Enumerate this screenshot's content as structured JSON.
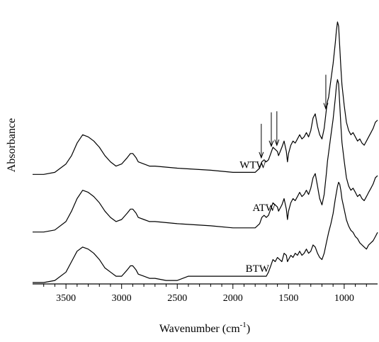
{
  "chart_data": {
    "type": "line",
    "title": "",
    "xlabel": "Wavenumber (cm-1)",
    "xlabel_main": "Wavenumber (cm",
    "xlabel_sup": "-1",
    "xlabel_close": ")",
    "ylabel": "Absorbance",
    "x_reversed": true,
    "xlim": [
      3800,
      700
    ],
    "ylim": [
      0,
      1
    ],
    "x_ticks": [
      3500,
      3000,
      2500,
      2000,
      1500,
      1000
    ],
    "x_tick_labels": [
      "3500",
      "3000",
      "2500",
      "2000",
      "1500",
      "1000"
    ],
    "y_ticks_shown": false,
    "grid": false,
    "legend": "none",
    "series": [
      {
        "name": "WTW",
        "label_x": 1820,
        "x": [
          3800,
          3700,
          3600,
          3500,
          3450,
          3400,
          3350,
          3300,
          3250,
          3200,
          3150,
          3100,
          3050,
          3000,
          2950,
          2920,
          2900,
          2870,
          2850,
          2800,
          2750,
          2700,
          2500,
          2200,
          2000,
          1800,
          1760,
          1740,
          1720,
          1700,
          1680,
          1660,
          1640,
          1620,
          1600,
          1590,
          1560,
          1540,
          1520,
          1510,
          1500,
          1480,
          1460,
          1440,
          1420,
          1400,
          1380,
          1360,
          1340,
          1320,
          1300,
          1280,
          1260,
          1240,
          1230,
          1220,
          1200,
          1180,
          1160,
          1150,
          1140,
          1120,
          1100,
          1080,
          1070,
          1060,
          1050,
          1040,
          1030,
          1020,
          1000,
          980,
          960,
          940,
          920,
          900,
          880,
          860,
          840,
          820,
          800,
          780,
          760,
          740,
          720,
          700
        ],
        "y": [
          0.27,
          0.27,
          0.28,
          0.32,
          0.36,
          0.42,
          0.46,
          0.45,
          0.43,
          0.4,
          0.36,
          0.33,
          0.31,
          0.32,
          0.35,
          0.37,
          0.37,
          0.35,
          0.33,
          0.32,
          0.31,
          0.31,
          0.3,
          0.29,
          0.28,
          0.28,
          0.3,
          0.33,
          0.34,
          0.33,
          0.34,
          0.37,
          0.4,
          0.39,
          0.38,
          0.36,
          0.4,
          0.43,
          0.38,
          0.33,
          0.37,
          0.41,
          0.43,
          0.42,
          0.44,
          0.46,
          0.44,
          0.45,
          0.47,
          0.45,
          0.48,
          0.54,
          0.56,
          0.5,
          0.48,
          0.46,
          0.44,
          0.49,
          0.58,
          0.62,
          0.64,
          0.72,
          0.8,
          0.9,
          0.96,
          1.0,
          0.98,
          0.88,
          0.78,
          0.7,
          0.6,
          0.52,
          0.48,
          0.46,
          0.47,
          0.45,
          0.43,
          0.44,
          0.42,
          0.41,
          0.43,
          0.45,
          0.47,
          0.49,
          0.52,
          0.53
        ]
      },
      {
        "name": "ATW",
        "label_x": 1720,
        "x": [
          3800,
          3700,
          3600,
          3500,
          3450,
          3400,
          3350,
          3300,
          3250,
          3200,
          3150,
          3100,
          3050,
          3000,
          2950,
          2920,
          2900,
          2870,
          2850,
          2800,
          2750,
          2700,
          2500,
          2200,
          2000,
          1800,
          1760,
          1740,
          1720,
          1700,
          1680,
          1660,
          1640,
          1620,
          1600,
          1590,
          1560,
          1540,
          1520,
          1510,
          1500,
          1480,
          1460,
          1440,
          1420,
          1400,
          1380,
          1360,
          1340,
          1320,
          1300,
          1280,
          1260,
          1240,
          1230,
          1220,
          1200,
          1180,
          1160,
          1150,
          1140,
          1120,
          1100,
          1080,
          1070,
          1060,
          1050,
          1040,
          1030,
          1020,
          1000,
          980,
          960,
          940,
          920,
          900,
          880,
          860,
          840,
          820,
          800,
          780,
          760,
          740,
          720,
          700
        ],
        "y": [
          0.14,
          0.14,
          0.15,
          0.19,
          0.24,
          0.3,
          0.34,
          0.33,
          0.31,
          0.28,
          0.24,
          0.21,
          0.19,
          0.2,
          0.23,
          0.25,
          0.25,
          0.23,
          0.21,
          0.2,
          0.19,
          0.19,
          0.18,
          0.17,
          0.16,
          0.16,
          0.18,
          0.21,
          0.22,
          0.21,
          0.22,
          0.25,
          0.28,
          0.27,
          0.26,
          0.24,
          0.27,
          0.3,
          0.25,
          0.2,
          0.24,
          0.28,
          0.3,
          0.29,
          0.31,
          0.33,
          0.31,
          0.32,
          0.34,
          0.32,
          0.35,
          0.4,
          0.42,
          0.36,
          0.33,
          0.3,
          0.27,
          0.32,
          0.42,
          0.48,
          0.52,
          0.6,
          0.68,
          0.78,
          0.84,
          0.87,
          0.85,
          0.75,
          0.65,
          0.57,
          0.48,
          0.4,
          0.36,
          0.34,
          0.35,
          0.33,
          0.31,
          0.32,
          0.3,
          0.29,
          0.31,
          0.33,
          0.35,
          0.37,
          0.4,
          0.41
        ]
      },
      {
        "name": "BTW",
        "label_x": 1780,
        "x": [
          3800,
          3700,
          3600,
          3500,
          3450,
          3400,
          3350,
          3300,
          3250,
          3200,
          3150,
          3100,
          3050,
          3000,
          2950,
          2920,
          2900,
          2870,
          2850,
          2800,
          2750,
          2700,
          2600,
          2500,
          2400,
          2200,
          2000,
          1800,
          1700,
          1680,
          1660,
          1640,
          1620,
          1600,
          1580,
          1560,
          1540,
          1520,
          1510,
          1500,
          1480,
          1460,
          1440,
          1420,
          1400,
          1380,
          1360,
          1340,
          1320,
          1300,
          1280,
          1260,
          1240,
          1230,
          1220,
          1200,
          1180,
          1160,
          1140,
          1120,
          1100,
          1080,
          1060,
          1050,
          1040,
          1030,
          1020,
          1000,
          980,
          960,
          940,
          920,
          900,
          880,
          860,
          840,
          820,
          800,
          780,
          760,
          740,
          720,
          700
        ],
        "y": [
          0.0,
          0.0,
          0.01,
          0.05,
          0.1,
          0.15,
          0.17,
          0.16,
          0.14,
          0.11,
          0.07,
          0.05,
          0.03,
          0.03,
          0.06,
          0.08,
          0.08,
          0.06,
          0.04,
          0.03,
          0.02,
          0.02,
          0.01,
          0.01,
          0.03,
          0.03,
          0.03,
          0.03,
          0.03,
          0.05,
          0.08,
          0.11,
          0.1,
          0.12,
          0.11,
          0.1,
          0.14,
          0.13,
          0.1,
          0.11,
          0.13,
          0.12,
          0.14,
          0.13,
          0.15,
          0.13,
          0.14,
          0.16,
          0.14,
          0.15,
          0.18,
          0.17,
          0.14,
          0.13,
          0.12,
          0.11,
          0.14,
          0.19,
          0.24,
          0.28,
          0.33,
          0.4,
          0.46,
          0.48,
          0.47,
          0.44,
          0.4,
          0.35,
          0.3,
          0.27,
          0.25,
          0.24,
          0.22,
          0.21,
          0.19,
          0.18,
          0.17,
          0.16,
          0.18,
          0.19,
          0.2,
          0.22,
          0.24
        ]
      }
    ],
    "annotations": [
      {
        "type": "arrow",
        "x": 1745
      },
      {
        "type": "arrow",
        "x": 1655
      },
      {
        "type": "arrow",
        "x": 1605
      },
      {
        "type": "arrow",
        "x": 1165
      }
    ]
  }
}
